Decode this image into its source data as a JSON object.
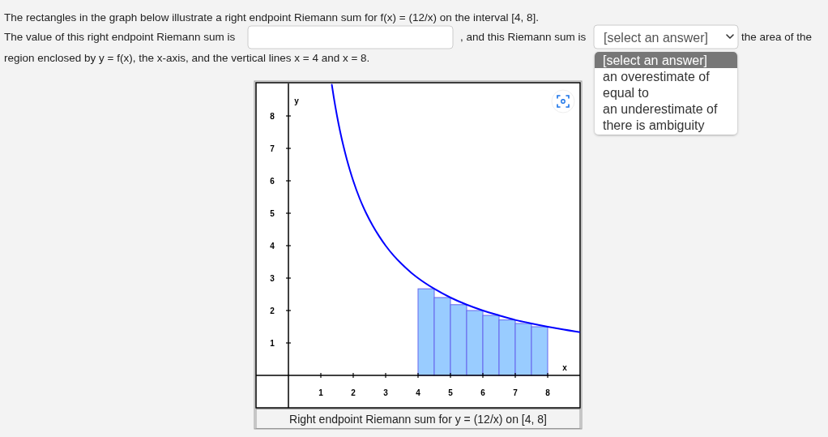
{
  "chart_data": {
    "type": "histogram",
    "title": "Right endpoint Riemann sum for y = (12/x) on [4, 8]",
    "xlabel": "x",
    "ylabel": "y",
    "annotations": [
      "The rectangles in the graph below illustrate a right endpoint Riemann sum for f(x) = (12/x) on the interval [4, 8].",
      "The value of this right endpoint Riemann sum is",
      ", and this Riemann sum is",
      "[select an answer]",
      "the area of the",
      "region enclosed by y = f(x), the x-axis, and the vertical lines x = 4 and x = 8.",
      "[select an answer]",
      "an overestimate of",
      "equal to",
      "an underestimate of",
      "there is ambiguity"
    ],
    "bins": [
      4,
      4.5,
      5,
      5.5,
      6,
      6.5,
      7,
      7.5,
      8
    ],
    "series": [
      {
        "values": [
          2.67,
          2.4,
          2.18,
          2.0,
          1.85,
          1.71,
          1.6,
          1.5
        ],
        "color": "#99ccff"
      },
      {
        "type": "line",
        "color": "#0000ff",
        "x": [
          1.34,
          1.4,
          1.5,
          1.6,
          1.7,
          1.8,
          1.9,
          2,
          2.2,
          2.4,
          2.6,
          2.8,
          3,
          3.25,
          3.5,
          3.75,
          4,
          4.5,
          5,
          5.5,
          6,
          6.5,
          7,
          7.5,
          8,
          8.5,
          9
        ],
        "values": [
          8.96,
          8.57,
          8,
          7.5,
          7.06,
          6.67,
          6.32,
          6,
          5.45,
          5,
          4.62,
          4.29,
          4,
          3.69,
          3.43,
          3.2,
          3,
          2.67,
          2.4,
          2.18,
          2,
          1.85,
          1.71,
          1.6,
          1.5,
          1.41,
          1.33
        ]
      }
    ],
    "xlim": [
      -1,
      9
    ],
    "ylim": [
      -1,
      9
    ],
    "xticks": [
      1,
      2,
      3,
      4,
      5,
      6,
      7,
      8
    ],
    "yticks": [
      1,
      2,
      3,
      4,
      5,
      6,
      7,
      8
    ]
  }
}
